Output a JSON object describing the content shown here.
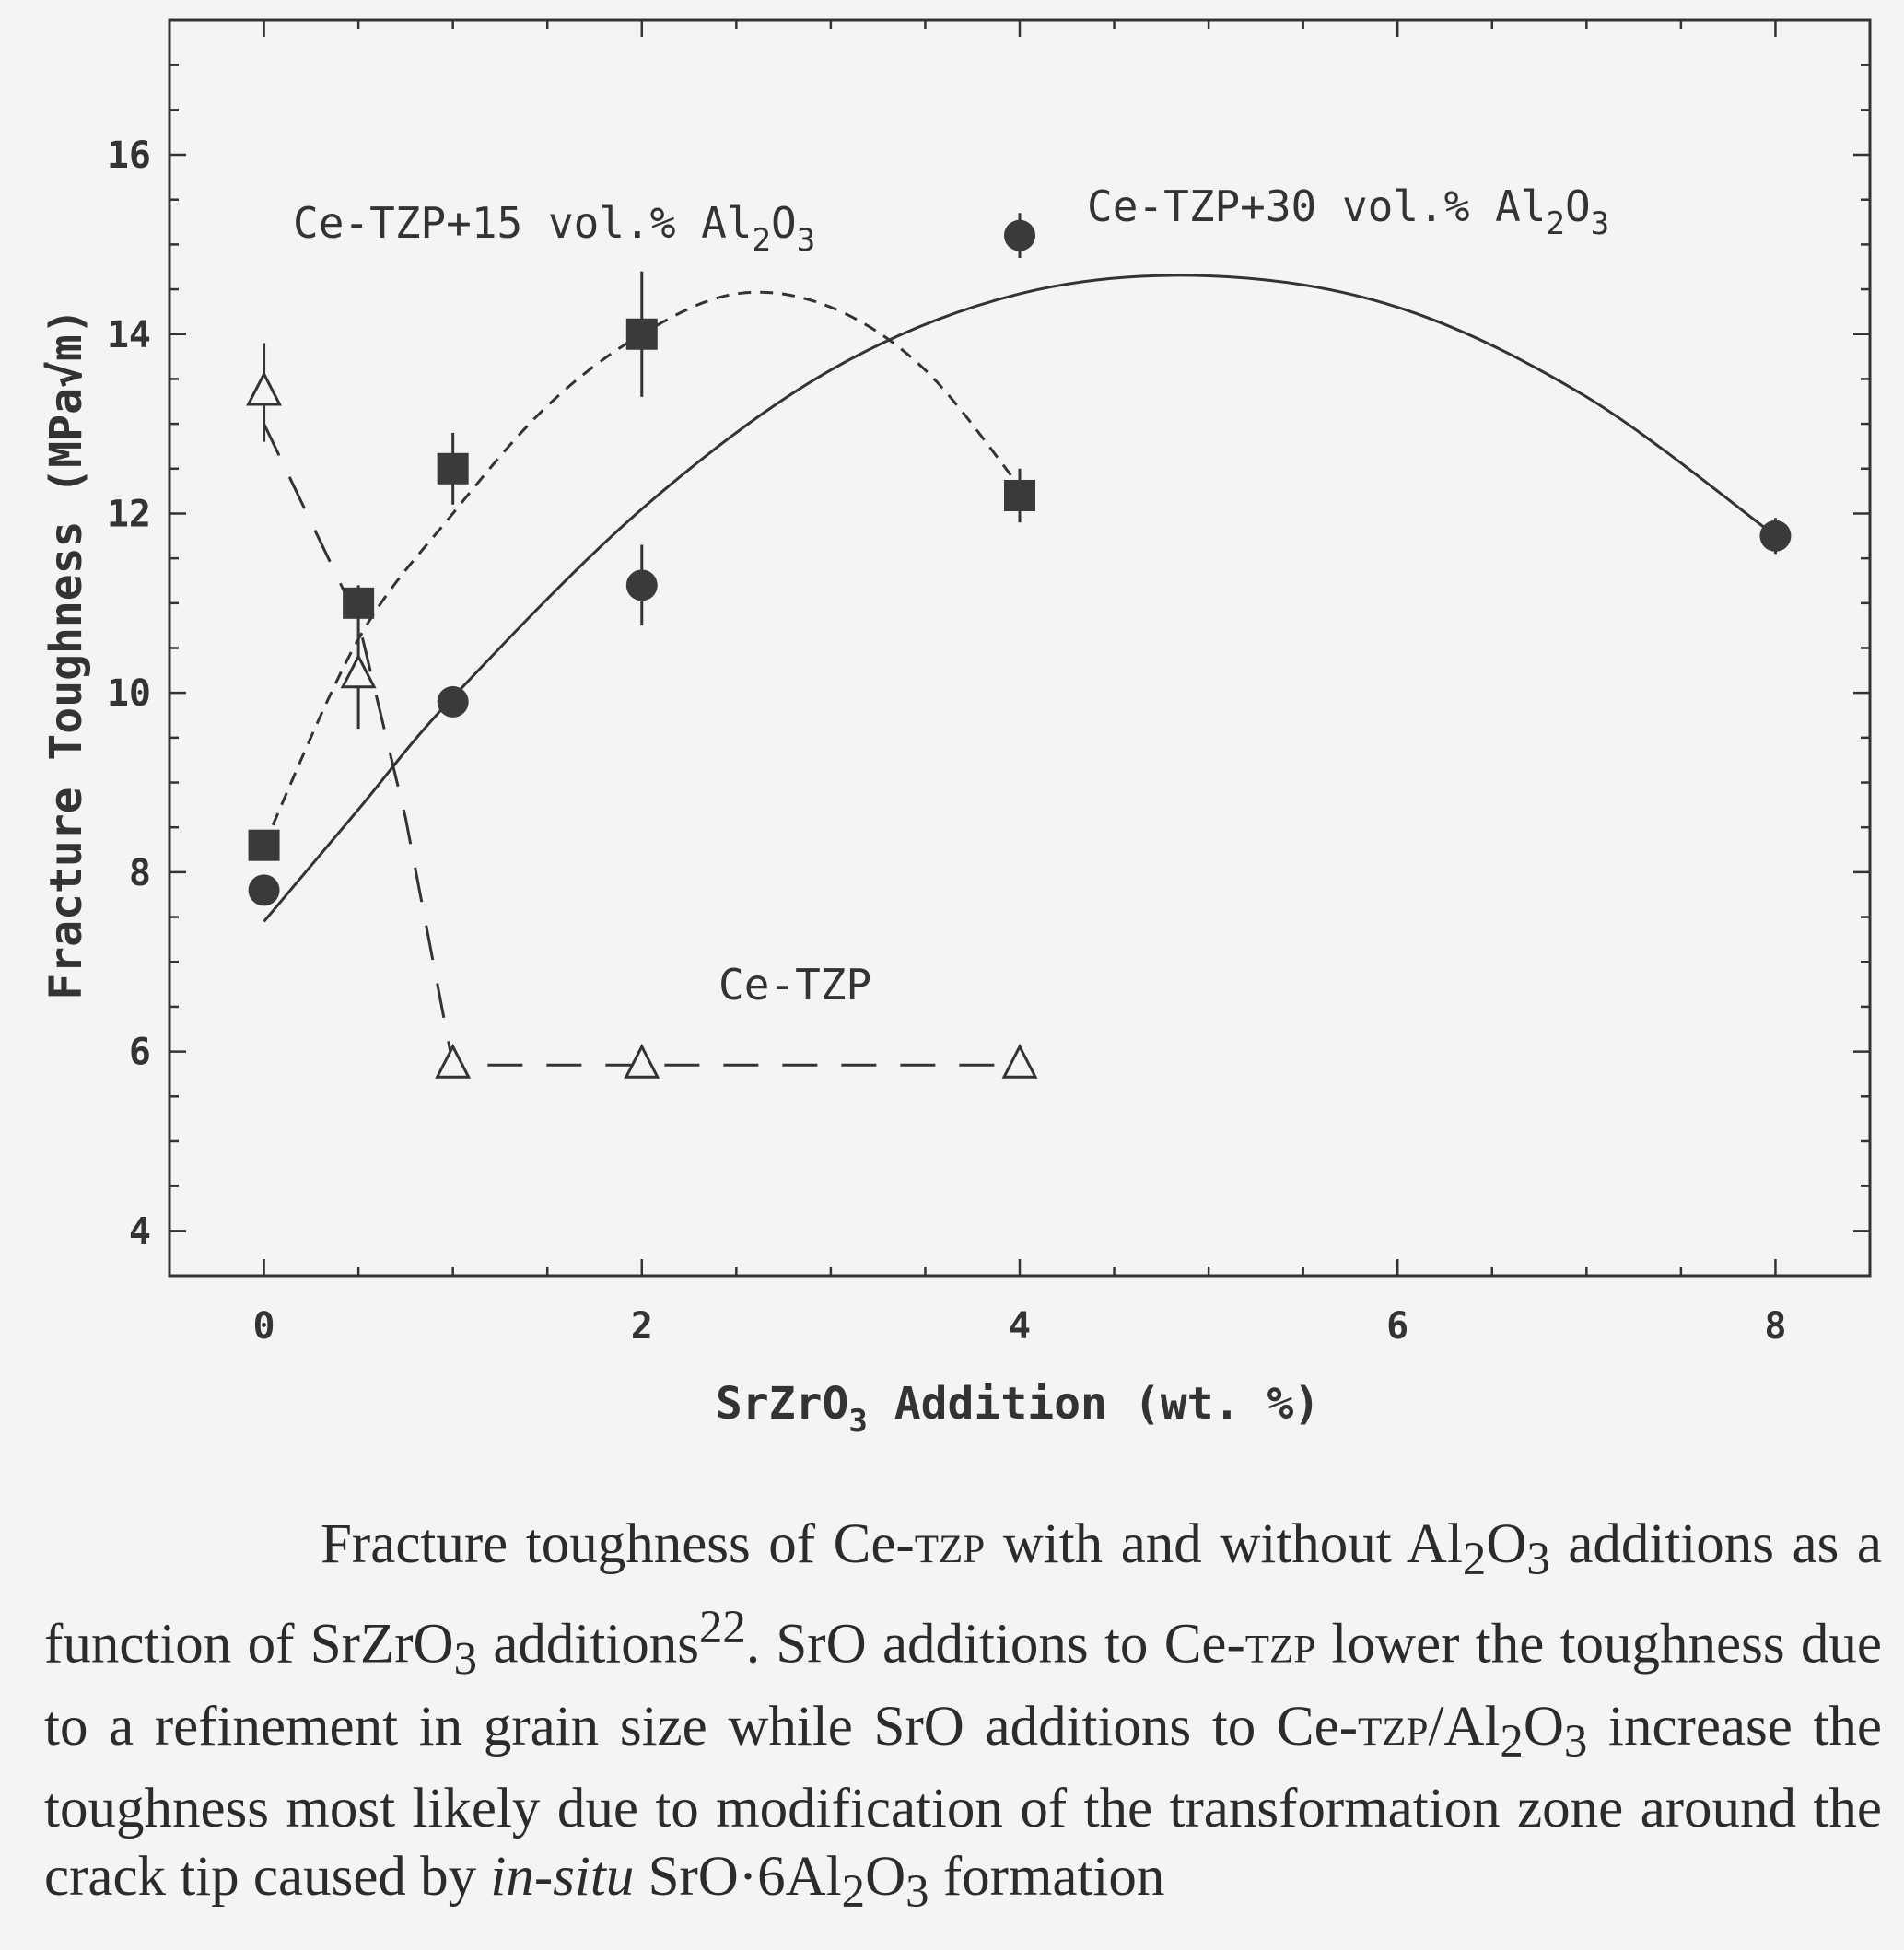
{
  "chart_data": {
    "type": "scatter",
    "xlabel": {
      "pre": "SrZrO",
      "sub": "3",
      "post": " Addition (wt. %)"
    },
    "ylabel": "Fracture Toughness (MPa√m)",
    "xlim": [
      -0.5,
      8.5
    ],
    "ylim": [
      3.5,
      17.5
    ],
    "xticks": [
      "0",
      "2",
      "4",
      "6",
      "8"
    ],
    "yticks": [
      "4",
      "6",
      "8",
      "10",
      "12",
      "14",
      "16"
    ],
    "grid": false,
    "series": [
      {
        "label": {
          "pre": "Ce-TZP+15 vol.% Al",
          "sub1": "2",
          "mid": "O",
          "sub2": "3"
        },
        "marker": "square",
        "line": "short-dash",
        "x": [
          0,
          0.5,
          1,
          2,
          4
        ],
        "y": [
          8.3,
          11.0,
          12.5,
          14.0,
          12.2
        ],
        "err": [
          0,
          0.2,
          0.4,
          0.7,
          0.3
        ],
        "fit": [
          [
            0,
            8.3
          ],
          [
            0.5,
            10.6
          ],
          [
            1,
            12.0
          ],
          [
            1.5,
            13.2
          ],
          [
            2,
            14.0
          ],
          [
            2.5,
            14.45
          ],
          [
            3,
            14.3
          ],
          [
            3.5,
            13.6
          ],
          [
            4,
            12.3
          ]
        ]
      },
      {
        "label": {
          "pre": "Ce-TZP+30 vol.% Al",
          "sub1": "2",
          "mid": "O",
          "sub2": "3"
        },
        "marker": "circle",
        "line": "solid",
        "x": [
          0,
          1,
          2,
          4,
          8
        ],
        "y": [
          7.8,
          9.9,
          11.2,
          15.1,
          11.75
        ],
        "err": [
          0.1,
          0.1,
          0.45,
          0.25,
          0.2
        ],
        "fit": [
          [
            0,
            7.45
          ],
          [
            0.5,
            8.7
          ],
          [
            1,
            9.95
          ],
          [
            2,
            12.05
          ],
          [
            3,
            13.6
          ],
          [
            4,
            14.45
          ],
          [
            5,
            14.65
          ],
          [
            6,
            14.3
          ],
          [
            7,
            13.3
          ],
          [
            8,
            11.75
          ]
        ]
      },
      {
        "label": {
          "pre": "Ce-TZP",
          "sub1": "",
          "mid": "",
          "sub2": ""
        },
        "marker": "triangle-open",
        "line": "long-dash",
        "x": [
          0,
          0.5,
          1,
          2,
          4
        ],
        "y": [
          13.35,
          10.2,
          5.85,
          5.85,
          5.85
        ],
        "err": [
          0.55,
          0.6,
          0.1,
          0.1,
          0.1
        ],
        "fit": [
          [
            0,
            13.0
          ],
          [
            0.5,
            10.8
          ],
          [
            0.75,
            8.6
          ],
          [
            1,
            5.85
          ],
          [
            2,
            5.85
          ],
          [
            4,
            5.85
          ]
        ]
      }
    ]
  },
  "caption": {
    "l1": "Fracture toughness of Ce-",
    "l1_sc": "tzp",
    "l2": " with and without Al",
    "l3": "O",
    "l4": " additions as a function of SrZrO",
    "l5": " additions",
    "l5_sup": "22",
    "l6": ". SrO additions to Ce-",
    "l6_sc": "tzp",
    "l7": " lower the toughness due to a refinement in grain size while SrO additions to Ce-",
    "l7_sc": "tzp",
    "l8": "/Al",
    "l9": "O",
    "l10": " increase the toughness most likely due to modification of the transformation zone around the crack tip caused by ",
    "l10_it": "in-situ",
    "l11": " SrO·6Al",
    "l12": "O",
    "l13": " formation"
  }
}
